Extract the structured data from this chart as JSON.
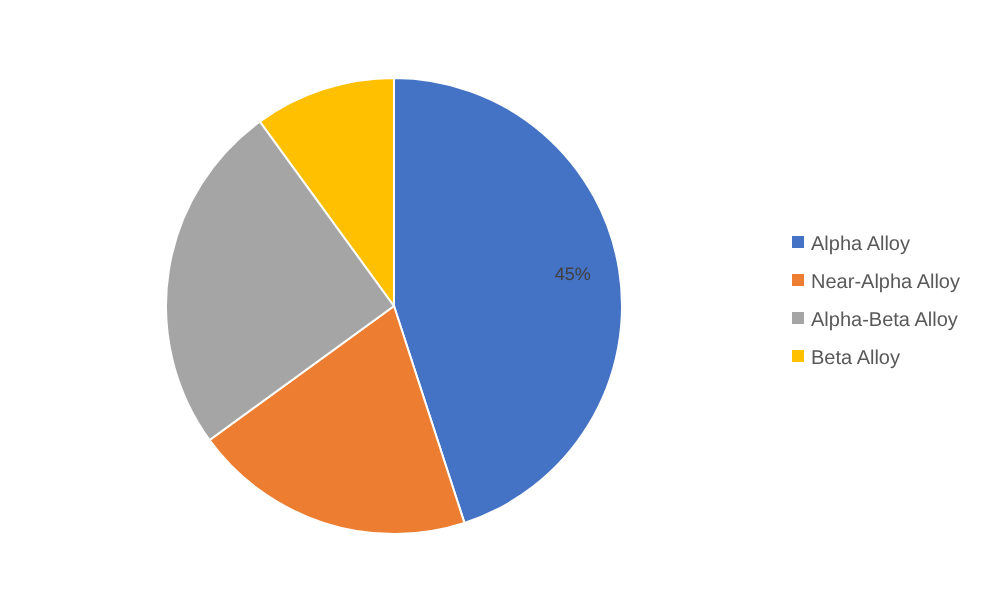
{
  "chart_data": {
    "type": "pie",
    "categories": [
      "Alpha Alloy",
      "Near-Alpha Alloy",
      "Alpha-Beta Alloy",
      "Beta Alloy"
    ],
    "values": [
      45,
      20,
      25,
      10
    ],
    "colors": [
      "#4472c4",
      "#ed7d31",
      "#a5a5a5",
      "#ffc000"
    ],
    "value_labels": [
      "45%",
      null,
      null,
      null
    ],
    "legend": "right"
  }
}
